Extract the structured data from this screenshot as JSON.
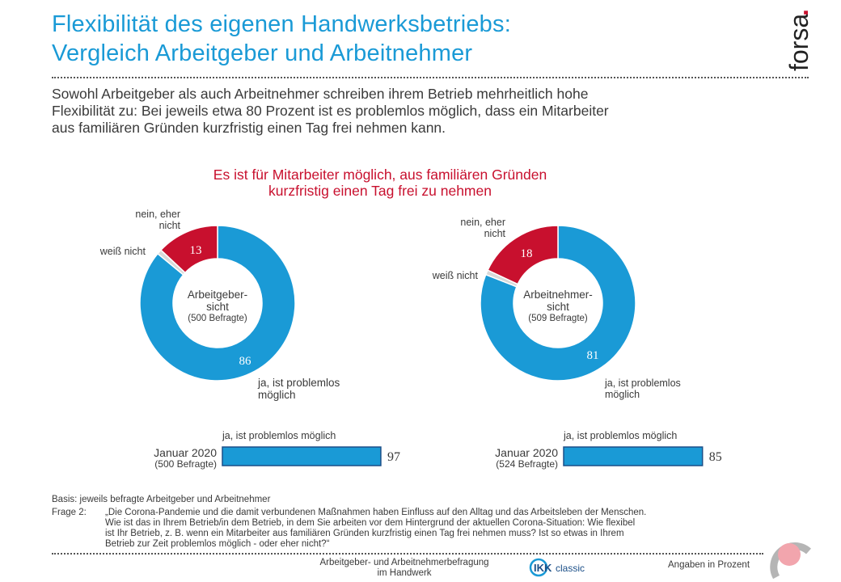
{
  "header": {
    "title_line1": "Flexibilität des eigenen Handwerksbetriebs:",
    "title_line2": "Vergleich Arbeitgeber und Arbeitnehmer",
    "logo_text": "forsa",
    "logo_dot": "."
  },
  "lead": {
    "line1": "Sowohl Arbeitgeber als auch Arbeitnehmer schreiben ihrem Betrieb mehrheitlich hohe",
    "line2": "Flexibilität zu: Bei jeweils etwa 80 Prozent ist es problemlos möglich, dass ein Mitarbeiter",
    "line3": "aus familiären Gründen kurzfristig einen Tag frei nehmen kann."
  },
  "chart_heading": {
    "line1": "Es ist für Mitarbeiter möglich, aus familiären Gründen",
    "line2": "kurzfristig einen Tag frei zu nehmen"
  },
  "colors": {
    "blue": "#1a9ad6",
    "red": "#c8102e",
    "gray": "#d9d9d9",
    "text": "#3a3a3a"
  },
  "chart_data": [
    {
      "type": "pie",
      "variant": "donut",
      "center_label_line1": "Arbeitgeber-",
      "center_label_line2": "sicht",
      "center_sublabel": "(500 Befragte)",
      "slices": [
        {
          "label_line1": "ja, ist problemlos",
          "label_line2": "möglich",
          "value": 86,
          "color": "#1a9ad6"
        },
        {
          "label_line1": "weiß nicht",
          "label_line2": "",
          "value": 1,
          "color": "#d9d9d9"
        },
        {
          "label_line1": "nein, eher",
          "label_line2": "nicht",
          "value": 13,
          "color": "#c8102e"
        }
      ]
    },
    {
      "type": "pie",
      "variant": "donut",
      "center_label_line1": "Arbeitnehmer-",
      "center_label_line2": "sicht",
      "center_sublabel": "(509 Befragte)",
      "slices": [
        {
          "label_line1": "ja, ist problemlos",
          "label_line2": "möglich",
          "value": 81,
          "color": "#1a9ad6"
        },
        {
          "label_line1": "weiß nicht",
          "label_line2": "",
          "value": 1,
          "color": "#d9d9d9"
        },
        {
          "label_line1": "nein, eher",
          "label_line2": "nicht",
          "value": 18,
          "color": "#c8102e"
        }
      ]
    },
    {
      "type": "bar",
      "orientation": "horizontal",
      "series_label": "ja, ist problemlos möglich",
      "category_line1": "Januar 2020",
      "category_line2": "(500 Befragte)",
      "value": 97,
      "xlim": [
        0,
        100
      ]
    },
    {
      "type": "bar",
      "orientation": "horizontal",
      "series_label": "ja, ist problemlos möglich",
      "category_line1": "Januar 2020",
      "category_line2": "(524 Befragte)",
      "value": 85,
      "xlim": [
        0,
        100
      ]
    }
  ],
  "footer": {
    "basis": "Basis: jeweils befragte Arbeitgeber und Arbeitnehmer",
    "frage_label": "Frage 2:",
    "frage_line1": "„Die Corona-Pandemie und die damit verbundenen Maßnahmen haben Einfluss auf den Alltag und das Arbeitsleben der Menschen.",
    "frage_line2": "Wie ist das in Ihrem Betrieb/in dem Betrieb, in dem Sie arbeiten vor dem Hintergrund der aktuellen Corona-Situation: Wie flexibel",
    "frage_line3": "ist Ihr Betrieb, z. B. wenn ein Mitarbeiter aus familiären Gründen kurzfristig einen Tag frei nehmen muss? Ist so etwas in Ihrem",
    "frage_line4": "Betrieb zur Zeit problemlos möglich - oder eher nicht?“",
    "survey_line1": "Arbeitgeber- und Arbeitnehmerbefragung",
    "survey_line2": "im Handwerk",
    "ikk_brand": "IKK",
    "ikk_suffix": "classic",
    "units": "Angaben in Prozent"
  }
}
